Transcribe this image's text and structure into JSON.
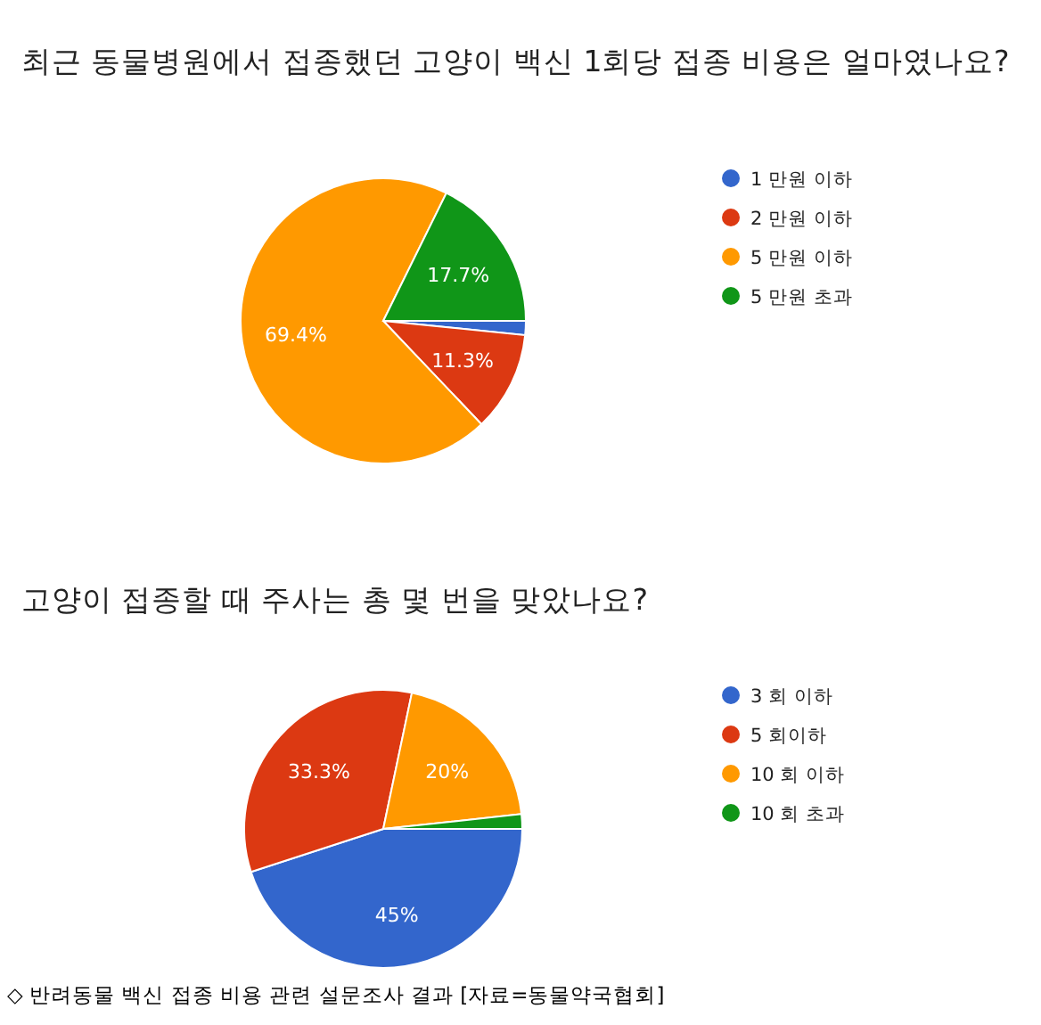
{
  "chart_data": [
    {
      "type": "pie",
      "title": "최근 동물병원에서 접종했던 고양이 백신 1회당 접종 비용은 얼마였나요?",
      "categories": [
        "1 만원 이하",
        "2 만원 이하",
        "5 만원 이하",
        "5 만원 초과"
      ],
      "values": [
        1.6,
        11.3,
        69.4,
        17.7
      ],
      "value_labels": [
        null,
        "11.3%",
        "69.4%",
        "17.7%"
      ],
      "colors": [
        "#3366cc",
        "#dc3912",
        "#ff9900",
        "#109618"
      ],
      "legend": "right"
    },
    {
      "type": "pie",
      "title": "고양이 접종할 때 주사는 총 몇 번을 맞았나요?",
      "categories": [
        "3 회 이하",
        "5 회이하",
        "10 회 이하",
        "10 회 초과"
      ],
      "values": [
        45,
        33.3,
        20,
        1.7
      ],
      "value_labels": [
        "45%",
        "33.3%",
        "20%",
        null
      ],
      "colors": [
        "#3366cc",
        "#dc3912",
        "#ff9900",
        "#109618"
      ],
      "legend": "right",
      "annotations": [
        "◇ 반려동물 백신 접종 비용 관련 설문조사 결과 [자료=동물약국협회]"
      ]
    }
  ]
}
